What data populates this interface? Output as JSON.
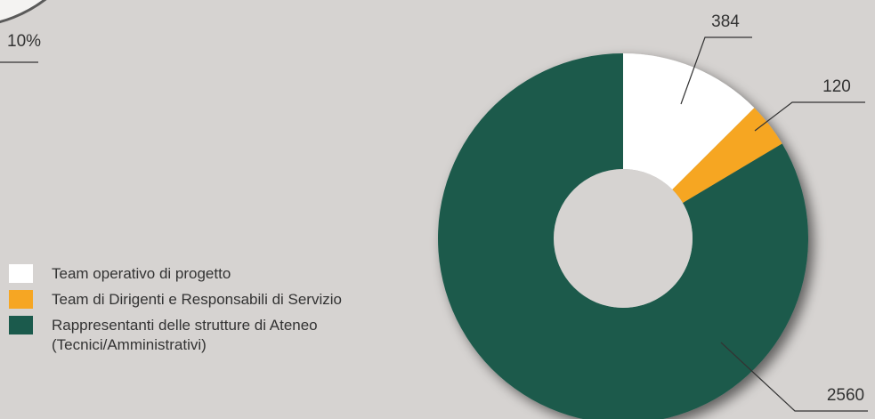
{
  "chart_data": {
    "type": "pie",
    "title": "",
    "categories": [
      "Team operativo di progetto",
      "Team di Dirigenti e Responsabili di Servizio",
      "Rappresentanti delle strutture di Ateneo (Tecnici/Amministrativi)"
    ],
    "values": [
      384,
      120,
      2560
    ],
    "value_labels": [
      "384",
      "120",
      "2560"
    ],
    "colors": [
      "#ffffff",
      "#f6a623",
      "#1b5a4c"
    ],
    "donut": true,
    "legend_position": "bottom-left"
  },
  "fragment": {
    "text": "10%"
  },
  "legend": {
    "items": [
      {
        "label": "Team operativo di progetto",
        "color": "#ffffff"
      },
      {
        "label": "Team di Dirigenti e Responsabili di Servizio",
        "color": "#f6a623"
      },
      {
        "label": "Rappresentanti delle strutture di Ateneo\n(Tecnici/Amministrativi)",
        "color": "#1b5a4c"
      }
    ]
  }
}
